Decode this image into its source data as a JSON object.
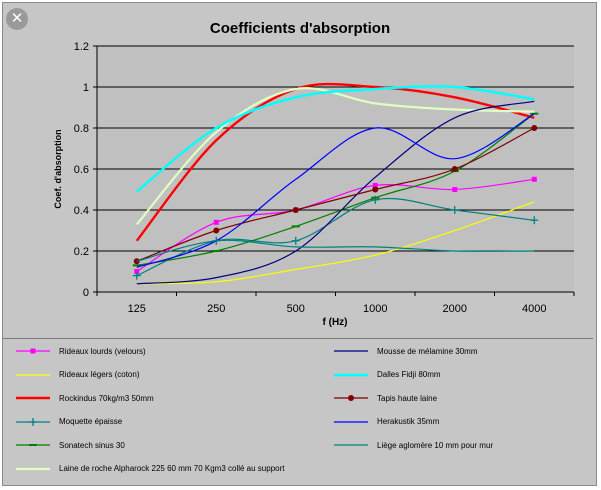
{
  "window": {
    "close_label": "✕"
  },
  "chart_data": {
    "type": "line",
    "title": "Coefficients d'absorption",
    "xlabel": "f (Hz)",
    "ylabel": "Coef. d'absorption",
    "categories": [
      "125",
      "250",
      "500",
      "1000",
      "2000",
      "4000"
    ],
    "ylim": [
      0,
      1.2
    ],
    "yticks": [
      "0",
      "0.2",
      "0.4",
      "0.6",
      "0.8",
      "1",
      "1.2"
    ],
    "grid": "horizontal",
    "legend_position": "bottom",
    "smooth": true,
    "series": [
      {
        "name": "Rideaux lourds (velours)",
        "color": "#ff00ff",
        "marker": "square",
        "values": [
          0.1,
          0.34,
          0.4,
          0.52,
          0.5,
          0.55
        ]
      },
      {
        "name": "Rideaux légers (coton)",
        "color": "#ffff00",
        "marker": "none",
        "values": [
          0.04,
          0.05,
          0.11,
          0.18,
          0.3,
          0.44
        ]
      },
      {
        "name": "Rockindus 70kg/m3 50mm",
        "color": "#ff0000",
        "marker": "none",
        "values": [
          0.25,
          0.74,
          0.99,
          1.0,
          0.95,
          0.85
        ]
      },
      {
        "name": "Moquette épaisse",
        "color": "#008080",
        "marker": "plus",
        "values": [
          0.08,
          0.25,
          0.25,
          0.45,
          0.4,
          0.35
        ]
      },
      {
        "name": "Sonatech sinus 30",
        "color": "#008000",
        "marker": "dash",
        "values": [
          0.13,
          0.2,
          0.32,
          0.46,
          0.59,
          0.87
        ]
      },
      {
        "name": "Laine de roche Alpharock 225 60 mm 70 Kgm3 collé au support",
        "color": "#e0ffc0",
        "marker": "none",
        "values": [
          0.33,
          0.78,
          0.99,
          0.92,
          0.89,
          0.88
        ]
      },
      {
        "name": "Mousse de mélamine 30mm",
        "color": "#000080",
        "marker": "none",
        "values": [
          0.04,
          0.07,
          0.2,
          0.56,
          0.85,
          0.93
        ]
      },
      {
        "name": "Dalles Fidji 80mm",
        "color": "#00ffff",
        "marker": "none",
        "values": [
          0.49,
          0.8,
          0.95,
          0.99,
          1.0,
          0.94
        ]
      },
      {
        "name": "Tapis haute laine",
        "color": "#800000",
        "marker": "circle",
        "values": [
          0.15,
          0.3,
          0.4,
          0.5,
          0.6,
          0.8
        ]
      },
      {
        "name": "Herakustik 35mm",
        "color": "#0000ff",
        "marker": "none",
        "values": [
          0.12,
          0.25,
          0.55,
          0.8,
          0.65,
          0.87
        ]
      },
      {
        "name": "Liège aglomère 10 mm pour mur",
        "color": "#008080",
        "marker": "none",
        "values": [
          0.15,
          0.25,
          0.22,
          0.22,
          0.2,
          0.2
        ]
      }
    ]
  },
  "legend": {
    "left": [
      "Rideaux lourds (velours)",
      "Rideaux légers (coton)",
      "Rockindus 70kg/m3 50mm",
      "Moquette épaisse",
      "Sonatech sinus 30",
      "Laine de roche Alpharock 225 60 mm 70 Kgm3 collé au support"
    ],
    "right": [
      "Mousse de mélamine 30mm",
      "Dalles Fidji 80mm",
      "Tapis haute laine",
      "Herakustik 35mm",
      "Liège aglomère 10 mm pour mur"
    ]
  }
}
